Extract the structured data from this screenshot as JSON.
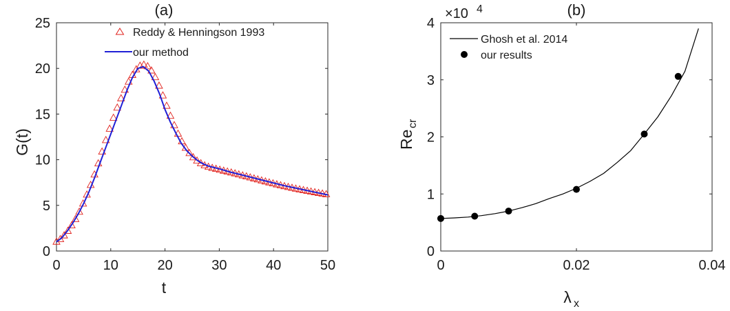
{
  "chart_data": [
    {
      "type": "line",
      "title": "(a)",
      "xlabel": "t",
      "ylabel": "G(t)",
      "xlim": [
        0,
        50
      ],
      "ylim": [
        0,
        25
      ],
      "xticks": [
        0,
        10,
        20,
        30,
        40,
        50
      ],
      "yticks": [
        0,
        5,
        10,
        15,
        20,
        25
      ],
      "grid": false,
      "legend": "top-right",
      "series": [
        {
          "name": "Reddy & Henningson 1993",
          "style": "markers",
          "marker": "triangle-open",
          "color": "#e0201b",
          "x": [
            0.0,
            0.7,
            1.4,
            2.1,
            2.8,
            3.5,
            4.2,
            4.9,
            5.6,
            6.3,
            7.0,
            7.7,
            8.4,
            9.1,
            9.8,
            10.5,
            11.2,
            11.9,
            12.6,
            13.3,
            14.0,
            14.7,
            15.4,
            16.1,
            16.8,
            17.5,
            18.2,
            18.9,
            19.6,
            20.3,
            21.0,
            21.7,
            22.4,
            23.1,
            23.8,
            24.5,
            25.2,
            25.9,
            26.6,
            27.3,
            28.0,
            28.7,
            29.4,
            30.1,
            30.8,
            31.5,
            32.2,
            32.9,
            33.6,
            34.3,
            35.0,
            35.7,
            36.4,
            37.1,
            37.8,
            38.5,
            39.2,
            39.9,
            40.6,
            41.3,
            42.0,
            42.7,
            43.4,
            44.1,
            44.8,
            45.5,
            46.2,
            46.9,
            47.6,
            48.3,
            49.0,
            49.7
          ],
          "y": [
            1.0,
            1.28,
            1.69,
            2.19,
            2.79,
            3.48,
            4.28,
            5.18,
            6.16,
            7.22,
            8.36,
            9.58,
            10.87,
            12.13,
            13.37,
            14.57,
            15.69,
            16.71,
            17.64,
            18.53,
            19.27,
            19.88,
            20.28,
            20.39,
            20.22,
            19.75,
            19.02,
            18.09,
            17.02,
            15.89,
            14.79,
            13.76,
            12.83,
            12.0,
            11.29,
            10.7,
            10.25,
            9.88,
            9.59,
            9.36,
            9.2,
            9.08,
            8.98,
            8.88,
            8.78,
            8.68,
            8.58,
            8.48,
            8.37,
            8.26,
            8.15,
            8.04,
            7.93,
            7.82,
            7.71,
            7.6,
            7.49,
            7.39,
            7.28,
            7.18,
            7.08,
            6.99,
            6.9,
            6.81,
            6.73,
            6.65,
            6.57,
            6.49,
            6.42,
            6.34,
            6.27,
            6.2
          ]
        },
        {
          "name": "our method",
          "style": "line",
          "color": "#1f1fd6",
          "x": [
            0,
            1,
            2,
            3,
            4,
            5,
            6,
            7,
            8,
            9,
            10,
            11,
            12,
            13,
            14,
            15,
            16,
            17,
            18,
            19,
            20,
            21,
            22,
            23,
            24,
            25,
            26,
            27,
            28,
            29,
            30,
            32,
            34,
            36,
            38,
            40,
            42,
            44,
            46,
            48,
            50
          ],
          "y": [
            1.0,
            1.45,
            2.2,
            3.05,
            4.05,
            5.2,
            6.5,
            8.0,
            9.6,
            11.2,
            12.8,
            14.4,
            16.0,
            17.6,
            19.0,
            20.0,
            20.2,
            19.7,
            18.6,
            17.2,
            15.5,
            14.1,
            12.9,
            11.8,
            11.0,
            10.4,
            9.9,
            9.55,
            9.3,
            9.15,
            9.0,
            8.65,
            8.35,
            8.05,
            7.75,
            7.45,
            7.15,
            6.9,
            6.65,
            6.4,
            6.15
          ]
        }
      ]
    },
    {
      "type": "line",
      "title": "(b)",
      "xlabel": "λ",
      "xlabel_sub": "x",
      "ylabel": "Re",
      "ylabel_sub": "cr",
      "y_multiplier_base": "×10",
      "y_multiplier_exp": "4",
      "xlim": [
        0,
        0.04
      ],
      "ylim": [
        0,
        40000
      ],
      "xticks": [
        0,
        0.02,
        0.04
      ],
      "xtick_labels": [
        "0",
        "0.02",
        "0.04"
      ],
      "yticks": [
        0,
        10000,
        20000,
        30000,
        40000
      ],
      "ytick_labels": [
        "0",
        "1",
        "2",
        "3",
        "4"
      ],
      "grid": false,
      "legend": "top-left",
      "series": [
        {
          "name": "Ghosh et al. 2014",
          "style": "line",
          "color": "#000000",
          "x": [
            0,
            0.002,
            0.004,
            0.006,
            0.008,
            0.01,
            0.012,
            0.014,
            0.016,
            0.018,
            0.02,
            0.022,
            0.024,
            0.026,
            0.028,
            0.03,
            0.032,
            0.034,
            0.036,
            0.038
          ],
          "y": [
            5700,
            5800,
            5950,
            6200,
            6550,
            7000,
            7600,
            8300,
            9200,
            10000,
            11000,
            12200,
            13600,
            15500,
            17600,
            20500,
            23500,
            27200,
            31500,
            39000
          ]
        },
        {
          "name": "our results",
          "style": "markers",
          "marker": "circle-filled",
          "color": "#000000",
          "x": [
            0,
            0.005,
            0.01,
            0.02,
            0.03,
            0.035
          ],
          "y": [
            5700,
            6100,
            7000,
            10800,
            20500,
            30600
          ]
        }
      ]
    }
  ]
}
